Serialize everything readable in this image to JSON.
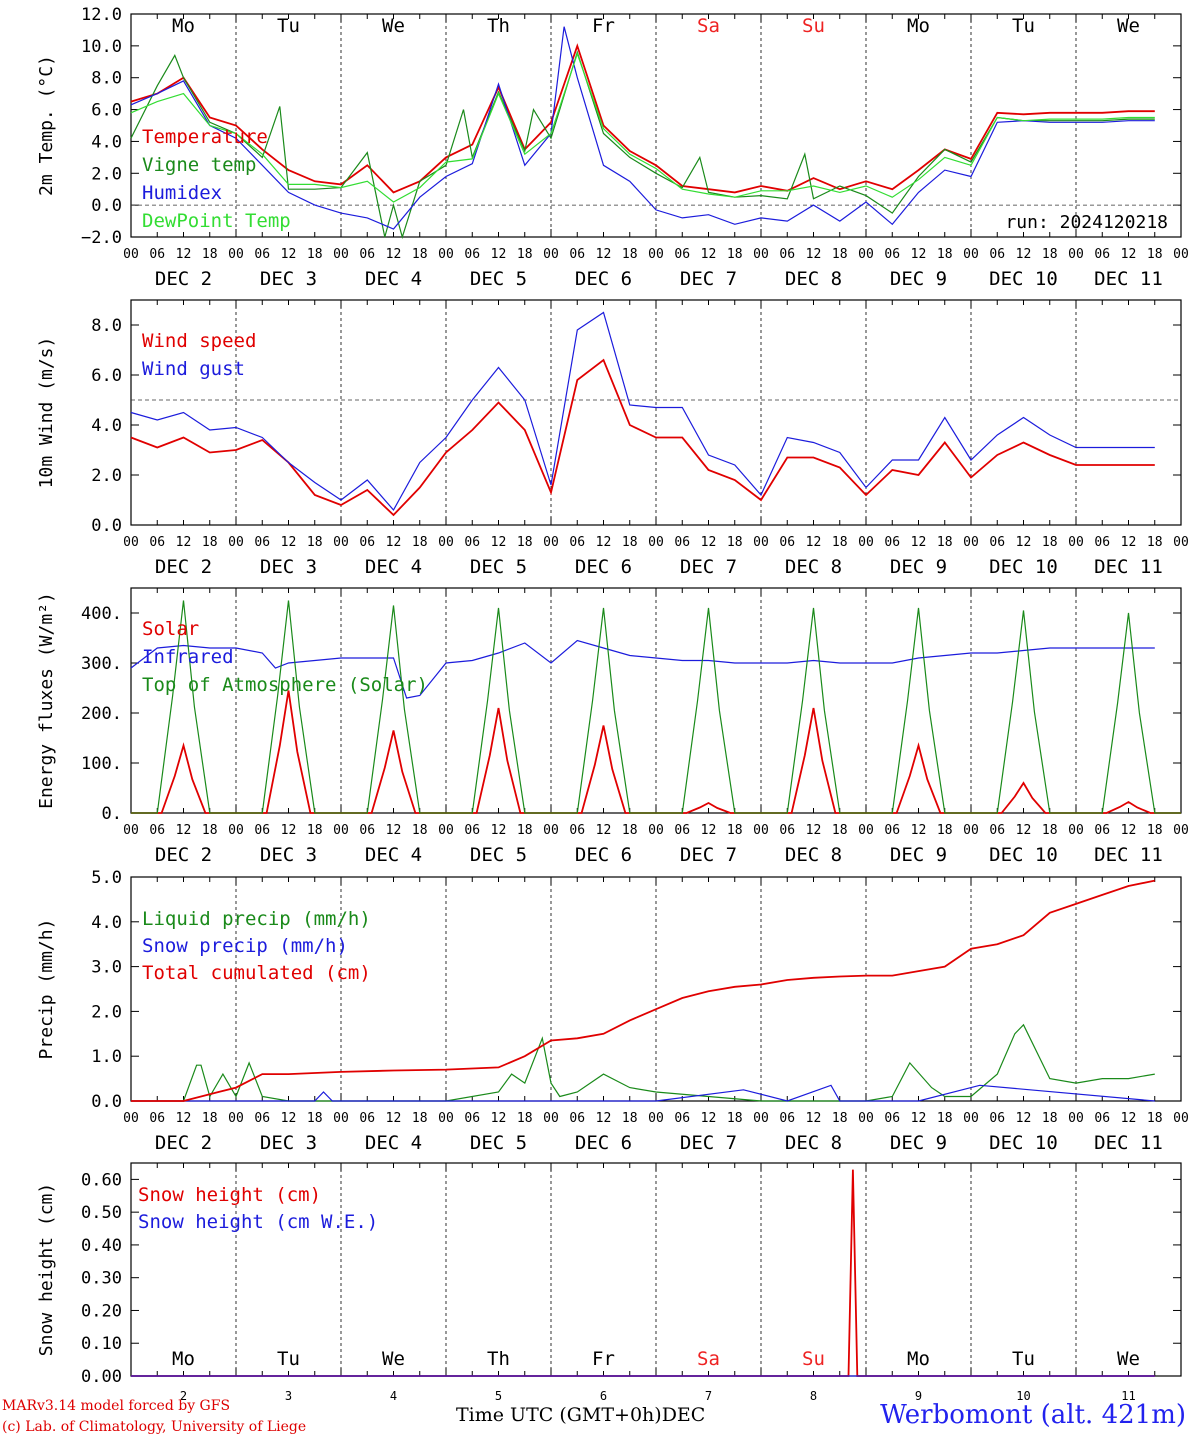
{
  "colors": {
    "red": "#e00000",
    "green": "#1a8a1a",
    "blue": "#1c1cdc",
    "light_green": "#33dd33",
    "weekend": "#ee2222",
    "station": "#2222ee"
  },
  "time_axis": {
    "hour_labels": [
      "00",
      "06",
      "12",
      "18"
    ],
    "date_labels": [
      "DEC  2",
      "DEC  3",
      "DEC  4",
      "DEC  5",
      "DEC  6",
      "DEC  7",
      "DEC  8",
      "DEC  9",
      "DEC 10",
      "DEC 11"
    ],
    "day_names": [
      "Mo",
      "Tu",
      "We",
      "Th",
      "Fr",
      "Sa",
      "Su",
      "Mo",
      "Tu",
      "We"
    ],
    "weekend_flags": [
      false,
      false,
      false,
      false,
      false,
      true,
      true,
      false,
      false,
      false
    ],
    "day_numbers": [
      "2",
      "3",
      "4",
      "5",
      "6",
      "7",
      "8",
      "9",
      "10",
      "11"
    ],
    "bottom_label": "Time UTC (GMT+0h)",
    "month_label": "DEC"
  },
  "footer": {
    "model": "MARv3.14 model forced by GFS",
    "credit": "(c) Lab. of Climatology, University of Liege",
    "station": "Werbomont (alt. 421m)"
  },
  "chart_data": [
    {
      "type": "line",
      "ylabel": "2m Temp. (°C)",
      "ylim": [
        -2,
        12
      ],
      "yticks": [
        -2,
        0,
        2,
        4,
        6,
        8,
        10,
        12
      ],
      "ytick_labels": [
        "−2.0",
        "0.0",
        "2.0",
        "4.0",
        "6.0",
        "8.0",
        "10.0",
        "12.0"
      ],
      "ref_line": 0,
      "x_unit": "hours since DEC 2 00 UTC",
      "annotation": "run: 2024120218",
      "series": [
        {
          "name": "Temperature",
          "color": "red",
          "x": [
            0,
            6,
            12,
            18,
            24,
            30,
            36,
            42,
            48,
            54,
            60,
            66,
            72,
            78,
            84,
            90,
            96,
            102,
            108,
            114,
            120,
            126,
            132,
            138,
            144,
            150,
            156,
            162,
            168,
            174,
            180,
            186,
            192,
            198,
            204,
            210,
            216,
            222,
            228,
            234
          ],
          "y": [
            6.5,
            7.0,
            8.0,
            5.5,
            5.0,
            3.5,
            2.2,
            1.5,
            1.3,
            2.5,
            0.8,
            1.5,
            3.0,
            3.8,
            7.4,
            3.5,
            5.2,
            10.0,
            5.0,
            3.4,
            2.5,
            1.2,
            1.0,
            0.8,
            1.2,
            0.9,
            1.7,
            1.0,
            1.5,
            1.0,
            2.2,
            3.5,
            2.9,
            5.8,
            5.7,
            5.8,
            5.8,
            5.8,
            5.9,
            5.9
          ]
        },
        {
          "name": "Vigne temp",
          "color": "green",
          "x": [
            0,
            6,
            10,
            12,
            18,
            24,
            30,
            34,
            36,
            42,
            48,
            54,
            58,
            60,
            62,
            66,
            72,
            76,
            78,
            84,
            90,
            92,
            96,
            102,
            108,
            114,
            120,
            126,
            130,
            132,
            138,
            144,
            150,
            154,
            156,
            162,
            168,
            174,
            180,
            186,
            192,
            198,
            204,
            210,
            216,
            222,
            228,
            234
          ],
          "y": [
            4.2,
            7.5,
            9.4,
            8.0,
            5.2,
            4.5,
            3.0,
            6.2,
            1.0,
            1.0,
            1.1,
            3.3,
            -2.2,
            0.0,
            -2.2,
            1.5,
            2.5,
            6.0,
            3.0,
            7.1,
            3.4,
            6.0,
            4.2,
            9.6,
            4.5,
            3.0,
            2.0,
            1.1,
            3.0,
            0.8,
            0.5,
            0.6,
            0.4,
            3.2,
            0.4,
            1.2,
            0.6,
            -0.5,
            1.8,
            3.5,
            2.7,
            5.5,
            5.3,
            5.3,
            5.3,
            5.3,
            5.4,
            5.4
          ]
        },
        {
          "name": "Humidex",
          "color": "blue",
          "x": [
            0,
            6,
            12,
            18,
            24,
            30,
            36,
            42,
            48,
            54,
            60,
            66,
            72,
            78,
            84,
            90,
            96,
            99,
            102,
            108,
            114,
            120,
            126,
            132,
            138,
            144,
            150,
            156,
            162,
            168,
            174,
            180,
            186,
            192,
            198,
            204,
            210,
            216,
            222,
            228,
            234
          ],
          "y": [
            6.3,
            7.0,
            7.8,
            5.0,
            4.2,
            2.5,
            0.8,
            0.0,
            -0.5,
            -0.8,
            -1.5,
            0.5,
            1.8,
            2.6,
            7.6,
            2.5,
            4.5,
            11.2,
            8.0,
            2.5,
            1.5,
            -0.3,
            -0.8,
            -0.6,
            -1.2,
            -0.8,
            -1.0,
            0.0,
            -1.0,
            0.2,
            -1.2,
            0.8,
            2.2,
            1.8,
            5.2,
            5.3,
            5.2,
            5.2,
            5.2,
            5.3,
            5.3
          ]
        },
        {
          "name": "DewPoint Temp",
          "color": "light_green",
          "x": [
            0,
            6,
            12,
            18,
            24,
            30,
            36,
            42,
            48,
            54,
            60,
            66,
            72,
            78,
            84,
            90,
            96,
            102,
            108,
            114,
            120,
            126,
            132,
            138,
            144,
            150,
            156,
            162,
            168,
            174,
            180,
            186,
            192,
            198,
            204,
            210,
            216,
            222,
            228,
            234
          ],
          "y": [
            5.8,
            6.5,
            7.0,
            5.0,
            4.5,
            3.2,
            1.3,
            1.3,
            1.1,
            1.5,
            0.2,
            1.1,
            2.7,
            2.9,
            7.0,
            3.2,
            4.5,
            9.5,
            4.8,
            3.2,
            2.3,
            1.0,
            0.7,
            0.5,
            0.9,
            0.9,
            1.2,
            0.8,
            1.2,
            0.5,
            1.6,
            3.0,
            2.5,
            5.5,
            5.3,
            5.4,
            5.4,
            5.4,
            5.5,
            5.5
          ]
        }
      ]
    },
    {
      "type": "line",
      "ylabel": "10m Wind (m/s)",
      "ylim": [
        0,
        9
      ],
      "yticks": [
        0,
        2,
        4,
        6,
        8
      ],
      "ytick_labels": [
        "0.0",
        "2.0",
        "4.0",
        "6.0",
        "8.0"
      ],
      "ref_line": 5,
      "x_unit": "hours since DEC 2 00 UTC",
      "series": [
        {
          "name": "Wind speed",
          "color": "red",
          "x": [
            0,
            6,
            12,
            18,
            24,
            30,
            36,
            42,
            48,
            54,
            60,
            66,
            72,
            78,
            84,
            90,
            96,
            102,
            108,
            114,
            120,
            126,
            132,
            138,
            144,
            150,
            156,
            162,
            168,
            174,
            180,
            186,
            192,
            198,
            204,
            210,
            216,
            222,
            228,
            234
          ],
          "y": [
            3.5,
            3.1,
            3.5,
            2.9,
            3.0,
            3.4,
            2.5,
            1.2,
            0.8,
            1.4,
            0.4,
            1.5,
            2.9,
            3.8,
            4.9,
            3.8,
            1.3,
            5.8,
            6.6,
            4.0,
            3.5,
            3.5,
            2.2,
            1.8,
            1.0,
            2.7,
            2.7,
            2.3,
            1.2,
            2.2,
            2.0,
            3.3,
            1.9,
            2.8,
            3.3,
            2.8,
            2.4,
            2.4,
            2.4,
            2.4
          ]
        },
        {
          "name": "Wind gust",
          "color": "blue",
          "x": [
            0,
            6,
            12,
            18,
            24,
            30,
            36,
            42,
            48,
            54,
            60,
            66,
            72,
            78,
            84,
            90,
            96,
            102,
            108,
            114,
            120,
            126,
            132,
            138,
            144,
            150,
            156,
            162,
            168,
            174,
            180,
            186,
            192,
            198,
            204,
            210,
            216,
            222,
            228,
            234
          ],
          "y": [
            4.5,
            4.2,
            4.5,
            3.8,
            3.9,
            3.5,
            2.5,
            1.7,
            1.0,
            1.8,
            0.6,
            2.5,
            3.5,
            5.0,
            6.3,
            5.0,
            1.6,
            7.8,
            8.5,
            4.8,
            4.7,
            4.7,
            2.8,
            2.4,
            1.2,
            3.5,
            3.3,
            2.9,
            1.5,
            2.6,
            2.6,
            4.3,
            2.6,
            3.6,
            4.3,
            3.6,
            3.1,
            3.1,
            3.1,
            3.1
          ]
        }
      ]
    },
    {
      "type": "line",
      "ylabel": "Energy fluxes (W/m²)",
      "ylim": [
        0,
        450
      ],
      "yticks": [
        0,
        100,
        200,
        300,
        400
      ],
      "ytick_labels": [
        "0.",
        "100.",
        "200.",
        "300.",
        "400."
      ],
      "x_unit": "hours since DEC 2 00 UTC",
      "series": [
        {
          "name": "Solar",
          "color": "red",
          "peaks": [
            135,
            245,
            165,
            210,
            175,
            20,
            210,
            135,
            60,
            22
          ]
        },
        {
          "name": "Infrared",
          "color": "blue",
          "x": [
            0,
            6,
            12,
            18,
            24,
            30,
            33,
            36,
            42,
            48,
            54,
            60,
            63,
            66,
            72,
            78,
            84,
            90,
            96,
            102,
            108,
            114,
            120,
            126,
            132,
            138,
            144,
            150,
            156,
            162,
            168,
            174,
            180,
            186,
            192,
            198,
            204,
            210,
            216,
            222,
            228,
            234
          ],
          "y": [
            290,
            330,
            335,
            330,
            330,
            320,
            290,
            300,
            305,
            310,
            310,
            310,
            230,
            235,
            300,
            305,
            320,
            340,
            300,
            345,
            330,
            315,
            310,
            305,
            305,
            300,
            300,
            300,
            305,
            300,
            300,
            300,
            310,
            315,
            320,
            320,
            325,
            330,
            330,
            330,
            330,
            330
          ]
        },
        {
          "name": "Top of Atmosphere (Solar)",
          "color": "green",
          "peaks": [
            425,
            425,
            415,
            410,
            410,
            410,
            410,
            410,
            405,
            400
          ]
        }
      ]
    },
    {
      "type": "line",
      "ylabel": "Precip (mm/h)",
      "ylim": [
        0,
        5
      ],
      "yticks": [
        0,
        1,
        2,
        3,
        4,
        5
      ],
      "ytick_labels": [
        "0.0",
        "1.0",
        "2.0",
        "3.0",
        "4.0",
        "5.0"
      ],
      "x_unit": "hours since DEC 2 00 UTC",
      "series": [
        {
          "name": "Liquid precip (mm/h)",
          "color": "green",
          "x": [
            0,
            12,
            15,
            16,
            18,
            21,
            24,
            27,
            30,
            36,
            48,
            60,
            72,
            84,
            87,
            90,
            94,
            96,
            98,
            102,
            108,
            114,
            120,
            132,
            144,
            156,
            168,
            174,
            178,
            183,
            186,
            192,
            198,
            202,
            204,
            210,
            216,
            222,
            228,
            234
          ],
          "y": [
            0,
            0,
            0.8,
            0.8,
            0.1,
            0.6,
            0.1,
            0.85,
            0.1,
            0,
            0,
            0,
            0,
            0.2,
            0.6,
            0.4,
            1.4,
            0.4,
            0.1,
            0.2,
            0.6,
            0.3,
            0.2,
            0.1,
            0,
            0,
            0,
            0.1,
            0.85,
            0.3,
            0.1,
            0.1,
            0.6,
            1.5,
            1.7,
            0.5,
            0.4,
            0.5,
            0.5,
            0.6
          ]
        },
        {
          "name": "Snow precip (mm/h)",
          "color": "blue",
          "x": [
            0,
            42,
            44,
            46,
            60,
            120,
            140,
            150,
            160,
            162,
            180,
            194,
            234
          ],
          "y": [
            0,
            0,
            0.2,
            0,
            0,
            0,
            0.25,
            0,
            0.35,
            0,
            0,
            0.35,
            0
          ]
        },
        {
          "name": "Total cumulated (cm)",
          "color": "red",
          "x": [
            0,
            12,
            16,
            20,
            24,
            30,
            36,
            48,
            60,
            72,
            84,
            90,
            96,
            102,
            108,
            114,
            120,
            126,
            132,
            138,
            144,
            150,
            156,
            162,
            168,
            174,
            180,
            186,
            192,
            198,
            204,
            210,
            216,
            222,
            228,
            234
          ],
          "y": [
            0,
            0,
            0.1,
            0.2,
            0.3,
            0.6,
            0.6,
            0.65,
            0.68,
            0.7,
            0.75,
            1.0,
            1.35,
            1.4,
            1.5,
            1.8,
            2.05,
            2.3,
            2.45,
            2.55,
            2.6,
            2.7,
            2.75,
            2.78,
            2.8,
            2.8,
            2.9,
            3.0,
            3.4,
            3.5,
            3.7,
            4.2,
            4.4,
            4.6,
            4.8,
            4.92
          ]
        }
      ]
    },
    {
      "type": "line",
      "ylabel": "Snow height (cm)",
      "ylim": [
        0,
        0.65
      ],
      "yticks": [
        0,
        0.1,
        0.2,
        0.3,
        0.4,
        0.5,
        0.6
      ],
      "ytick_labels": [
        "0.00",
        "0.10",
        "0.20",
        "0.30",
        "0.40",
        "0.50",
        "0.60"
      ],
      "x_unit": "hours since DEC 2 00 UTC",
      "series": [
        {
          "name": "Snow height (cm)",
          "color": "red",
          "x": [
            0,
            162,
            164,
            165,
            166,
            168,
            234
          ],
          "y": [
            0,
            0,
            0,
            0.63,
            0,
            0,
            0
          ]
        },
        {
          "name": "Snow height (cm W.E.)",
          "color": "blue",
          "x": [
            0,
            234
          ],
          "y": [
            0,
            0
          ]
        }
      ]
    }
  ]
}
